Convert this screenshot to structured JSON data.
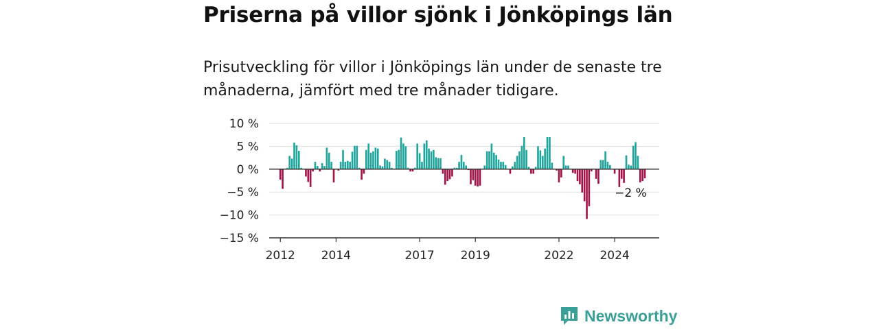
{
  "title": "Priserna på villor sjönk i Jönköpings län",
  "subtitle": "Prisutveckling för villor i Jönköpings län under de senaste tre månaderna, jämfört med tre månader tidigare.",
  "brand": {
    "name": "Newsworthy",
    "logo_icon": "newsworthy-logo-icon",
    "color": "#3a9f96"
  },
  "chart_data": {
    "type": "bar",
    "ylim": [
      -15,
      10
    ],
    "yticks": [
      10,
      5,
      0,
      -5,
      -10,
      -15
    ],
    "ytick_labels": [
      "10 %",
      "5 %",
      "0 %",
      "−5 %",
      "−10 %",
      "−15 %"
    ],
    "xlim": [
      2011.6,
      2025.6
    ],
    "xticks": [
      2012,
      2014,
      2017,
      2019,
      2022,
      2024
    ],
    "xtick_labels": [
      "2012",
      "2014",
      "2017",
      "2019",
      "2022",
      "2024"
    ],
    "grid": true,
    "positive_color": "#1fa59b",
    "negative_color": "#a3154a",
    "annotation": {
      "text": "−2 %",
      "x": 2025.2,
      "y": -2
    },
    "x": [
      2012.0,
      2012.083,
      2012.167,
      2012.25,
      2012.333,
      2012.417,
      2012.5,
      2012.583,
      2012.667,
      2012.75,
      2012.833,
      2012.917,
      2013.0,
      2013.083,
      2013.167,
      2013.25,
      2013.333,
      2013.417,
      2013.5,
      2013.583,
      2013.667,
      2013.75,
      2013.833,
      2013.917,
      2014.0,
      2014.083,
      2014.167,
      2014.25,
      2014.333,
      2014.417,
      2014.5,
      2014.583,
      2014.667,
      2014.75,
      2014.833,
      2014.917,
      2015.0,
      2015.083,
      2015.167,
      2015.25,
      2015.333,
      2015.417,
      2015.5,
      2015.583,
      2015.667,
      2015.75,
      2015.833,
      2015.917,
      2016.0,
      2016.083,
      2016.167,
      2016.25,
      2016.333,
      2016.417,
      2016.5,
      2016.583,
      2016.667,
      2016.75,
      2016.833,
      2016.917,
      2017.0,
      2017.083,
      2017.167,
      2017.25,
      2017.333,
      2017.417,
      2017.5,
      2017.583,
      2017.667,
      2017.75,
      2017.833,
      2017.917,
      2018.0,
      2018.083,
      2018.167,
      2018.25,
      2018.333,
      2018.417,
      2018.5,
      2018.583,
      2018.667,
      2018.75,
      2018.833,
      2018.917,
      2019.0,
      2019.083,
      2019.167,
      2019.25,
      2019.333,
      2019.417,
      2019.5,
      2019.583,
      2019.667,
      2019.75,
      2019.833,
      2019.917,
      2020.0,
      2020.083,
      2020.167,
      2020.25,
      2020.333,
      2020.417,
      2020.5,
      2020.583,
      2020.667,
      2020.75,
      2020.833,
      2020.917,
      2021.0,
      2021.083,
      2021.167,
      2021.25,
      2021.333,
      2021.417,
      2021.5,
      2021.583,
      2021.667,
      2021.75,
      2021.833,
      2021.917,
      2022.0,
      2022.083,
      2022.167,
      2022.25,
      2022.333,
      2022.417,
      2022.5,
      2022.583,
      2022.667,
      2022.75,
      2022.833,
      2022.917,
      2023.0,
      2023.083,
      2023.167,
      2023.25,
      2023.333,
      2023.417,
      2023.5,
      2023.583,
      2023.667,
      2023.75,
      2023.833,
      2023.917,
      2024.0,
      2024.083,
      2024.167,
      2024.25,
      2024.333,
      2024.417,
      2024.5,
      2024.583,
      2024.667,
      2024.75,
      2024.833,
      2024.917,
      2025.0,
      2025.083
    ],
    "values": [
      -2.3,
      -4.3,
      0.0,
      0.3,
      2.9,
      2.3,
      5.8,
      5.2,
      4.0,
      0.3,
      0.0,
      -1.6,
      -2.8,
      -3.9,
      -0.5,
      1.6,
      0.7,
      -0.5,
      1.3,
      0.7,
      4.7,
      3.6,
      1.6,
      -2.9,
      0.0,
      -0.3,
      1.6,
      4.2,
      1.6,
      1.8,
      1.6,
      3.8,
      5.1,
      5.1,
      0.3,
      -2.3,
      -1.0,
      4.2,
      5.6,
      3.6,
      3.9,
      4.7,
      4.5,
      0.8,
      0.6,
      2.3,
      2.0,
      1.6,
      0.3,
      0.0,
      4.0,
      4.2,
      6.9,
      5.6,
      5.0,
      0.3,
      -0.5,
      -0.5,
      0.3,
      5.6,
      3.5,
      1.6,
      5.6,
      6.3,
      4.5,
      3.9,
      4.2,
      2.6,
      2.4,
      2.4,
      -1.0,
      -3.4,
      -2.6,
      -2.2,
      -1.6,
      0.3,
      0.3,
      1.6,
      3.1,
      1.6,
      0.8,
      -0.2,
      -3.3,
      -2.4,
      -3.6,
      -3.8,
      -3.6,
      0.0,
      0.8,
      3.9,
      3.9,
      5.6,
      3.6,
      3.1,
      2.1,
      1.6,
      1.6,
      0.9,
      0.0,
      -1.0,
      0.6,
      1.6,
      2.9,
      3.9,
      5.1,
      7.0,
      4.2,
      0.5,
      -1.0,
      -1.0,
      0.5,
      5.0,
      4.1,
      2.9,
      4.5,
      7.0,
      7.0,
      1.4,
      0.0,
      -0.3,
      -2.9,
      -1.8,
      2.9,
      0.8,
      0.8,
      0.0,
      -0.8,
      -1.0,
      -2.6,
      -3.3,
      -5.1,
      -7.0,
      -10.9,
      -8.1,
      -0.5,
      0.0,
      -2.1,
      -3.2,
      2.0,
      2.0,
      3.9,
      1.6,
      0.9,
      0.0,
      -1.0,
      0.0,
      -3.9,
      -2.1,
      -3.0,
      3.0,
      1.0,
      0.8,
      5.1,
      5.9,
      2.9,
      -2.9,
      -2.6,
      -2.0
    ]
  }
}
